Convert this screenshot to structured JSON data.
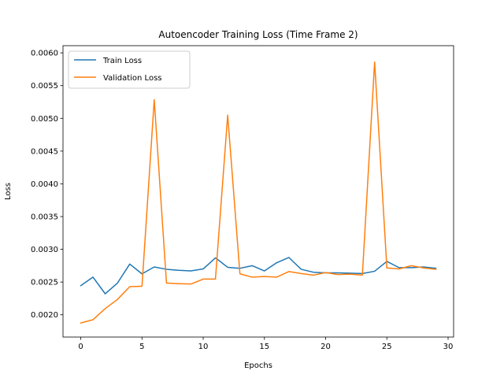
{
  "chart_data": {
    "type": "line",
    "title": "Autoencoder Training Loss (Time Frame 2)",
    "xlabel": "Epochs",
    "ylabel": "Loss",
    "xlim": [
      -1.45,
      30.45
    ],
    "ylim": [
      0.00166,
      0.00611
    ],
    "xticks": [
      0,
      5,
      10,
      15,
      20,
      25,
      30
    ],
    "xtick_labels": [
      "0",
      "5",
      "10",
      "15",
      "20",
      "25",
      "30"
    ],
    "yticks": [
      0.002,
      0.0025,
      0.003,
      0.0035,
      0.004,
      0.0045,
      0.005,
      0.0055,
      0.006
    ],
    "ytick_labels": [
      "0.0020",
      "0.0025",
      "0.0030",
      "0.0035",
      "0.0040",
      "0.0045",
      "0.0050",
      "0.0055",
      "0.0060"
    ],
    "grid": false,
    "legend_position": "upper-left",
    "x": [
      0,
      1,
      2,
      3,
      4,
      5,
      6,
      7,
      8,
      9,
      10,
      11,
      12,
      13,
      14,
      15,
      16,
      17,
      18,
      19,
      20,
      21,
      22,
      23,
      24,
      25,
      26,
      27,
      28,
      29
    ],
    "series": [
      {
        "name": "Train Loss",
        "color": "#1f77b4",
        "values": [
          0.002445,
          0.002575,
          0.00232,
          0.002485,
          0.002775,
          0.002625,
          0.00273,
          0.002695,
          0.00268,
          0.00267,
          0.0027,
          0.00287,
          0.002725,
          0.00271,
          0.00275,
          0.00267,
          0.002795,
          0.002875,
          0.002695,
          0.00265,
          0.00264,
          0.00264,
          0.002635,
          0.00263,
          0.002665,
          0.002815,
          0.00272,
          0.00272,
          0.00273,
          0.00271
        ]
      },
      {
        "name": "Validation Loss",
        "color": "#ff7f0e",
        "values": [
          0.001875,
          0.001925,
          0.002095,
          0.002235,
          0.00243,
          0.002435,
          0.005285,
          0.002485,
          0.002475,
          0.00247,
          0.002545,
          0.002545,
          0.00505,
          0.002625,
          0.002575,
          0.002585,
          0.002575,
          0.00266,
          0.00263,
          0.002605,
          0.002645,
          0.002615,
          0.00262,
          0.002605,
          0.00586,
          0.002715,
          0.0027,
          0.00275,
          0.002715,
          0.002695
        ]
      }
    ]
  }
}
